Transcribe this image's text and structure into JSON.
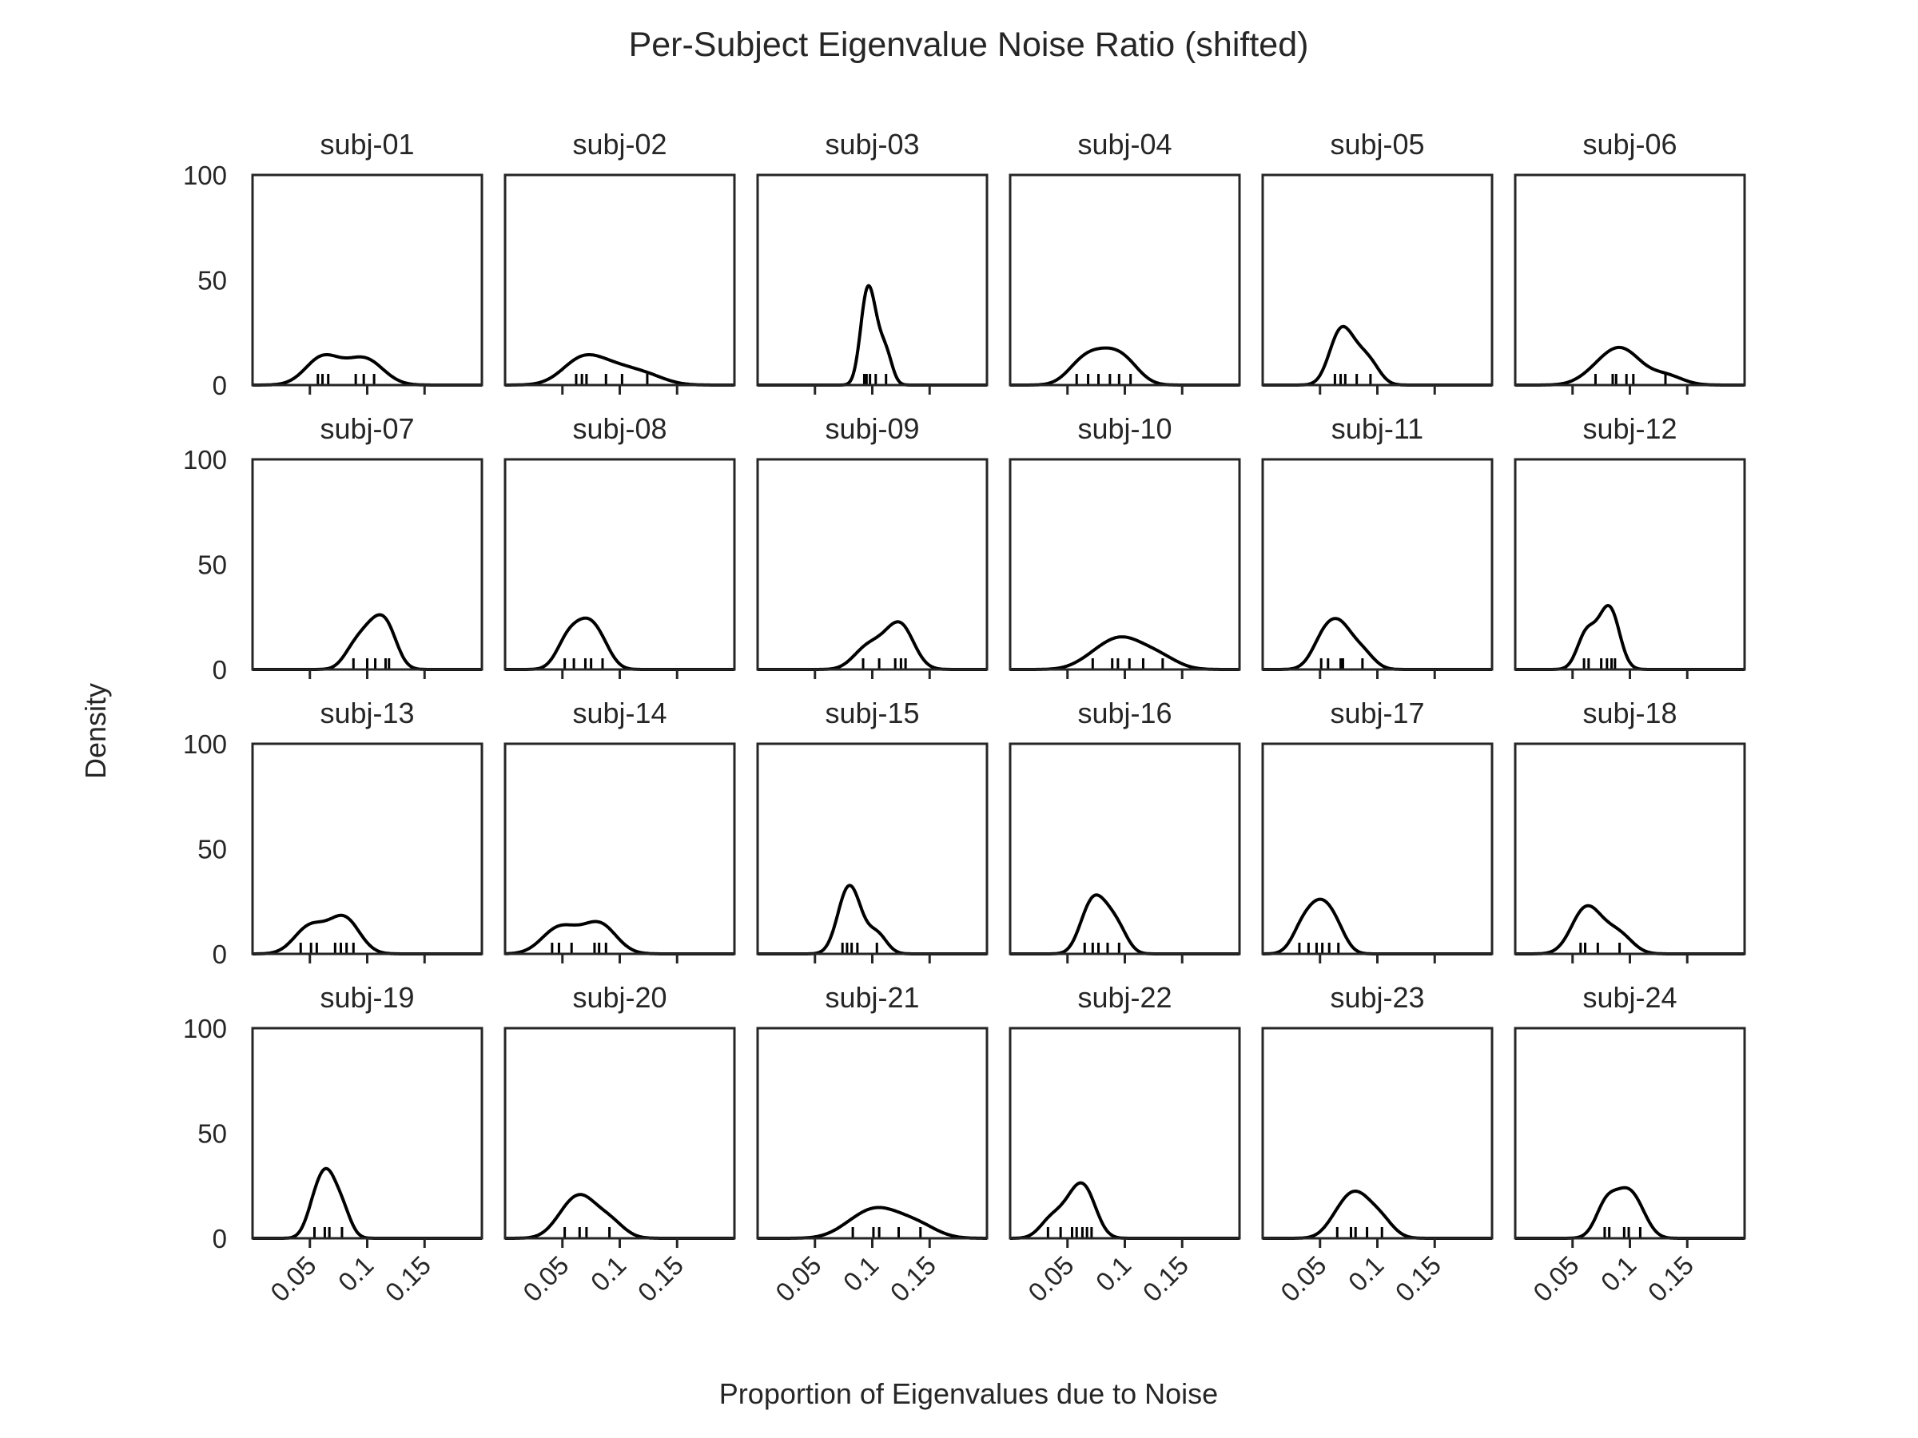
{
  "chart_data": {
    "type": "kde-facet-grid",
    "title": "Per-Subject Eigenvalue Noise Ratio (shifted)",
    "xlabel": "Proportion of Eigenvalues due to Noise",
    "ylabel": "Density",
    "xlim": [
      0.0,
      0.2
    ],
    "ylim": [
      0,
      100
    ],
    "xticks": [
      0.05,
      0.1,
      0.15
    ],
    "xtick_labels": [
      "0.05",
      "0.1",
      "0.15"
    ],
    "yticks": [
      0,
      50,
      100
    ],
    "ytick_labels": [
      "0",
      "50",
      "100"
    ],
    "grid": false,
    "legend": "none",
    "line_color": "#000000",
    "panels": [
      {
        "name": "subj-01",
        "samples": [
          0.057,
          0.061,
          0.066,
          0.09,
          0.097,
          0.106
        ]
      },
      {
        "name": "subj-02",
        "samples": [
          0.062,
          0.067,
          0.071,
          0.088,
          0.102,
          0.124
        ]
      },
      {
        "name": "subj-03",
        "samples": [
          0.093,
          0.095,
          0.098,
          0.103,
          0.112
        ]
      },
      {
        "name": "subj-04",
        "samples": [
          0.058,
          0.068,
          0.077,
          0.087,
          0.095,
          0.105
        ]
      },
      {
        "name": "subj-05",
        "samples": [
          0.063,
          0.068,
          0.072,
          0.082,
          0.094
        ]
      },
      {
        "name": "subj-06",
        "samples": [
          0.07,
          0.085,
          0.088,
          0.097,
          0.103,
          0.131
        ]
      },
      {
        "name": "subj-07",
        "samples": [
          0.088,
          0.1,
          0.107,
          0.116,
          0.119
        ]
      },
      {
        "name": "subj-08",
        "samples": [
          0.052,
          0.06,
          0.07,
          0.075,
          0.085
        ]
      },
      {
        "name": "subj-09",
        "samples": [
          0.092,
          0.106,
          0.12,
          0.125,
          0.129
        ]
      },
      {
        "name": "subj-10",
        "samples": [
          0.072,
          0.089,
          0.094,
          0.104,
          0.116,
          0.133
        ]
      },
      {
        "name": "subj-11",
        "samples": [
          0.051,
          0.057,
          0.068,
          0.07,
          0.087
        ]
      },
      {
        "name": "subj-12",
        "samples": [
          0.06,
          0.064,
          0.075,
          0.08,
          0.084,
          0.087
        ]
      },
      {
        "name": "subj-13",
        "samples": [
          0.042,
          0.051,
          0.056,
          0.072,
          0.077,
          0.082,
          0.088
        ]
      },
      {
        "name": "subj-14",
        "samples": [
          0.041,
          0.047,
          0.058,
          0.078,
          0.082,
          0.088
        ]
      },
      {
        "name": "subj-15",
        "samples": [
          0.074,
          0.078,
          0.082,
          0.087,
          0.104
        ]
      },
      {
        "name": "subj-16",
        "samples": [
          0.065,
          0.072,
          0.077,
          0.085,
          0.095
        ]
      },
      {
        "name": "subj-17",
        "samples": [
          0.032,
          0.04,
          0.047,
          0.052,
          0.058,
          0.066
        ]
      },
      {
        "name": "subj-18",
        "samples": [
          0.057,
          0.061,
          0.072,
          0.091
        ]
      },
      {
        "name": "subj-19",
        "samples": [
          0.054,
          0.063,
          0.067,
          0.078
        ]
      },
      {
        "name": "subj-20",
        "samples": [
          0.052,
          0.065,
          0.071,
          0.091
        ]
      },
      {
        "name": "subj-21",
        "samples": [
          0.083,
          0.101,
          0.106,
          0.123,
          0.142
        ]
      },
      {
        "name": "subj-22",
        "samples": [
          0.033,
          0.044,
          0.054,
          0.058,
          0.063,
          0.067,
          0.071
        ]
      },
      {
        "name": "subj-23",
        "samples": [
          0.065,
          0.077,
          0.081,
          0.091,
          0.104
        ]
      },
      {
        "name": "subj-24",
        "samples": [
          0.078,
          0.082,
          0.095,
          0.099,
          0.109
        ]
      }
    ]
  }
}
